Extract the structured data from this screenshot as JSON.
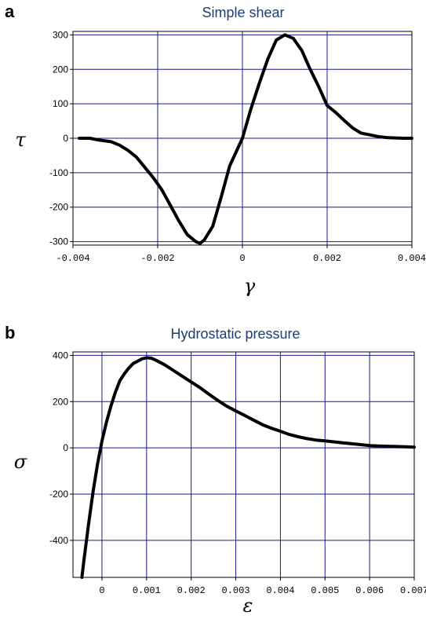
{
  "chart_data": [
    {
      "type": "line",
      "panel": "a",
      "title": "Simple shear",
      "xlabel": "γ",
      "ylabel": "τ",
      "xlim": [
        -0.004,
        0.004
      ],
      "ylim": [
        -310,
        310
      ],
      "xticks": [
        -0.004,
        -0.002,
        0,
        0.002,
        0.004
      ],
      "xtick_labels": [
        "-0.004",
        "-0.002",
        "0",
        "0.002",
        "0.004"
      ],
      "yticks": [
        300,
        200,
        100,
        0,
        -100,
        -200,
        -300
      ],
      "ytick_labels": [
        "300",
        "200",
        "100",
        "0",
        "-100",
        "-200",
        "-300"
      ],
      "grid": true,
      "series": [
        {
          "x": [
            -0.00385,
            -0.0036,
            -0.0034,
            -0.0031,
            -0.0029,
            -0.0027,
            -0.0025,
            -0.0023,
            -0.0021,
            -0.0019,
            -0.0017,
            -0.0015,
            -0.0013,
            -0.0011,
            -0.001,
            -0.0009,
            -0.0007,
            -0.0005,
            -0.0003,
            0,
            0.0002,
            0.0004,
            0.0006,
            0.0008,
            0.001,
            0.0012,
            0.0014,
            0.0016,
            0.0018,
            0.002,
            0.0022,
            0.0024,
            0.0026,
            0.0028,
            0.003,
            0.0032,
            0.0034,
            0.0036,
            0.0038,
            0.004
          ],
          "y": [
            0,
            0,
            -5,
            -10,
            -20,
            -35,
            -55,
            -85,
            -115,
            -150,
            -195,
            -240,
            -280,
            -300,
            -305,
            -295,
            -255,
            -170,
            -80,
            0,
            85,
            160,
            230,
            285,
            300,
            290,
            255,
            200,
            150,
            95,
            75,
            52,
            30,
            15,
            10,
            5,
            2,
            1,
            0,
            0
          ]
        }
      ]
    },
    {
      "type": "line",
      "panel": "b",
      "title": "Hydrostatic pressure",
      "xlabel": "ε",
      "ylabel": "σ",
      "xlim": [
        -0.00065,
        0.007
      ],
      "ylim": [
        -560,
        415
      ],
      "xticks": [
        0,
        0.001,
        0.002,
        0.003,
        0.004,
        0.005,
        0.006,
        0.007
      ],
      "xtick_labels": [
        "0",
        "0.001",
        "0.002",
        "0.003",
        "0.004",
        "0.005",
        "0.006",
        "0.007"
      ],
      "yticks": [
        400,
        200,
        0,
        -200,
        -400
      ],
      "ytick_labels": [
        "400",
        "200",
        "0",
        "-200",
        "-400"
      ],
      "grid": true,
      "series": [
        {
          "x": [
            -0.00045,
            -0.0004,
            -0.0003,
            -0.0002,
            -0.0001,
            0,
            0.0001,
            0.0002,
            0.0003,
            0.0004,
            0.0005,
            0.0006,
            0.0007,
            0.0008,
            0.0009,
            0.001,
            0.0011,
            0.0012,
            0.0014,
            0.0016,
            0.0018,
            0.002,
            0.0022,
            0.0024,
            0.0026,
            0.0028,
            0.003,
            0.0032,
            0.0034,
            0.0036,
            0.0038,
            0.004,
            0.0042,
            0.0044,
            0.0046,
            0.0048,
            0.005,
            0.0052,
            0.0054,
            0.0056,
            0.0058,
            0.006,
            0.0062,
            0.0064,
            0.0066,
            0.0068,
            0.007
          ],
          "y": [
            -560,
            -480,
            -330,
            -190,
            -70,
            30,
            110,
            180,
            240,
            290,
            320,
            345,
            365,
            375,
            385,
            390,
            388,
            380,
            360,
            335,
            310,
            285,
            260,
            232,
            205,
            180,
            160,
            140,
            120,
            100,
            85,
            72,
            58,
            48,
            40,
            34,
            30,
            26,
            22,
            18,
            14,
            10,
            8,
            7,
            6,
            5,
            3
          ]
        }
      ]
    }
  ]
}
